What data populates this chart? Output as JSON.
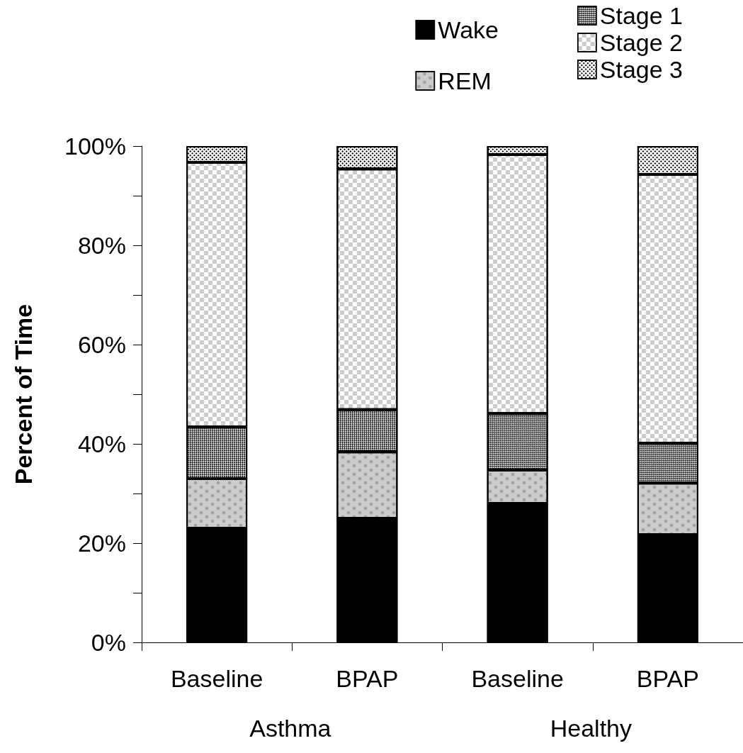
{
  "chart_data": {
    "type": "bar",
    "stacked": true,
    "ylabel": "Percent of Time",
    "categories": [
      "Baseline",
      "BPAP",
      "Baseline",
      "BPAP"
    ],
    "annotations": [
      "Asthma",
      "Healthy"
    ],
    "series": [
      {
        "name": "Wake",
        "color": "#000000",
        "values": [
          23,
          25,
          28,
          21.7
        ]
      },
      {
        "name": "REM",
        "color": "#cccccc",
        "values": [
          10,
          13.4,
          6.7,
          10.4
        ]
      },
      {
        "name": "Stage 1",
        "color": "#ffffff",
        "values": [
          10.4,
          8.5,
          11.4,
          8
        ]
      },
      {
        "name": "Stage 2",
        "color": "#ffffff",
        "values": [
          53.3,
          48.5,
          52.2,
          54.2
        ]
      },
      {
        "name": "Stage 3",
        "color": "#ffffff",
        "values": [
          3.3,
          4.6,
          1.7,
          5.7
        ]
      }
    ],
    "ylim": [
      0,
      100
    ],
    "yticks": [
      {
        "value": 0,
        "label": "0%"
      },
      {
        "value": 10,
        "label": null
      },
      {
        "value": 20,
        "label": "20%"
      },
      {
        "value": 30,
        "label": null
      },
      {
        "value": 40,
        "label": "40%"
      },
      {
        "value": 50,
        "label": null
      },
      {
        "value": 60,
        "label": "60%"
      },
      {
        "value": 70,
        "label": null
      },
      {
        "value": 80,
        "label": "80%"
      },
      {
        "value": 90,
        "label": null
      },
      {
        "value": 100,
        "label": "100%"
      }
    ],
    "grid": false,
    "legend": "top right"
  }
}
